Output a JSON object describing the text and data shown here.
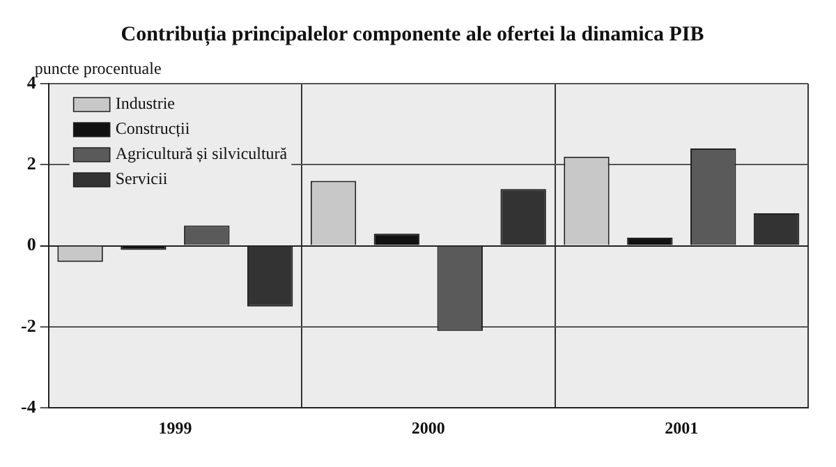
{
  "chart_data": {
    "type": "bar",
    "title": "Contribuția principalelor componente ale ofertei la dinamica PIB",
    "ylabel": "puncte procentuale",
    "categories": [
      "1999",
      "2000",
      "2001"
    ],
    "series": [
      {
        "name": "Industrie",
        "color": "#c8c8c8",
        "values": [
          -0.4,
          1.6,
          2.2
        ]
      },
      {
        "name": "Construcții",
        "color": "#111111",
        "values": [
          -0.1,
          0.3,
          0.2
        ]
      },
      {
        "name": "Agricultură și silvicultură",
        "color": "#5a5a5a",
        "values": [
          0.5,
          -2.1,
          2.4
        ]
      },
      {
        "name": "Servicii",
        "color": "#333333",
        "values": [
          -1.5,
          1.4,
          0.8
        ]
      }
    ],
    "ylim": [
      -4,
      4
    ],
    "yticks": [
      -4,
      -2,
      0,
      2,
      4
    ],
    "grid": true,
    "legend": "top left"
  }
}
